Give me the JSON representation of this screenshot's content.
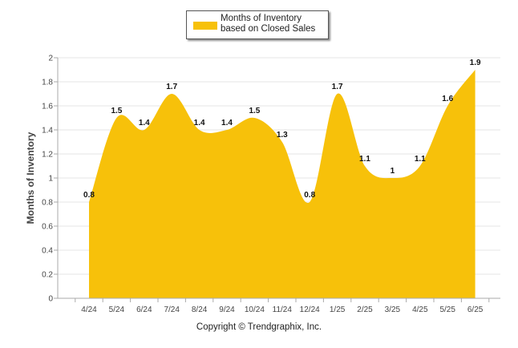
{
  "legend": {
    "label": "Months of Inventory based on Closed Sales"
  },
  "footer": {
    "copyright": "Copyright © Trendgraphix, Inc."
  },
  "colors": {
    "area": "#f7c10a",
    "grid": "#e6e6e6",
    "axis": "#aaaaaa"
  },
  "chart_data": {
    "type": "area",
    "categories": [
      "4/24",
      "5/24",
      "6/24",
      "7/24",
      "8/24",
      "9/24",
      "10/24",
      "11/24",
      "12/24",
      "1/25",
      "2/25",
      "3/25",
      "4/25",
      "5/25",
      "6/25"
    ],
    "series": [
      {
        "name": "Months of Inventory based on Closed Sales",
        "values": [
          0.8,
          1.5,
          1.4,
          1.7,
          1.4,
          1.4,
          1.5,
          1.3,
          0.8,
          1.7,
          1.1,
          1,
          1.1,
          1.6,
          1.9
        ]
      }
    ],
    "data_labels": [
      "0.8",
      "1.5",
      "1.4",
      "1.7",
      "1.4",
      "1.4",
      "1.5",
      "1.3",
      "0.8",
      "1.7",
      "1.1",
      "1",
      "1.1",
      "1.6",
      "1.9"
    ],
    "ylabel": "Months of Inventory",
    "xlabel": "",
    "ylim": [
      0,
      2
    ],
    "yticks": [
      "0",
      "0.2",
      "0.4",
      "0.6",
      "0.8",
      "1",
      "1.2",
      "1.4",
      "1.6",
      "1.8",
      "2"
    ],
    "grid": true,
    "smooth": true,
    "legend_position": "top-center"
  }
}
